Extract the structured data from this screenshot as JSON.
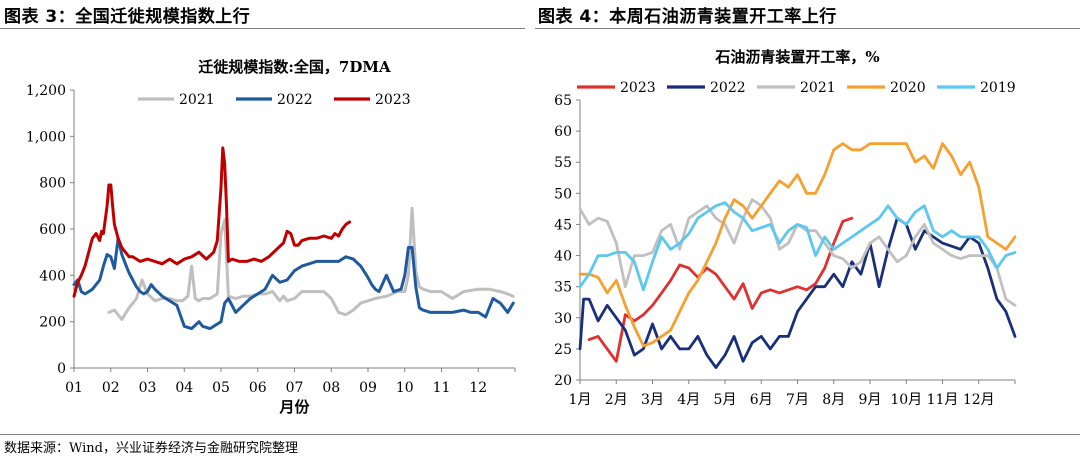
{
  "left": {
    "figure_title": "图表 3：全国迁徙规模指数上行"
  },
  "right": {
    "figure_title": "图表 4：本周石油沥青装置开工率上行"
  },
  "source": "数据来源：Wind，兴业证券经济与金融研究院整理",
  "chart_data": [
    {
      "type": "line",
      "title": "迁徙规模指数:全国，7DMA",
      "xlabel": "月份",
      "ylabel": "",
      "ylim": [
        0,
        1200
      ],
      "xlim": [
        1,
        13
      ],
      "yticks": [
        "0",
        "200",
        "400",
        "600",
        "800",
        "1,000",
        "1,200"
      ],
      "xticks": [
        "01",
        "02",
        "03",
        "04",
        "05",
        "06",
        "07",
        "08",
        "09",
        "10",
        "11",
        "12"
      ],
      "grid": false,
      "legend_position": "top",
      "colors": {
        "2021": "#bfbfbf",
        "2022": "#1f5a9e",
        "2023": "#c00000"
      },
      "series": [
        {
          "name": "2021",
          "x": [
            1.95,
            2.1,
            2.3,
            2.5,
            2.7,
            2.85,
            3.0,
            3.2,
            3.4,
            3.6,
            3.8,
            3.95,
            4.1,
            4.2,
            4.3,
            4.4,
            4.5,
            4.7,
            4.9,
            5.0,
            5.1,
            5.2,
            5.4,
            5.6,
            5.8,
            6.0,
            6.2,
            6.4,
            6.6,
            6.7,
            6.8,
            7.0,
            7.2,
            7.5,
            7.8,
            8.0,
            8.2,
            8.4,
            8.6,
            8.8,
            9.0,
            9.2,
            9.5,
            9.8,
            10.0,
            10.1,
            10.2,
            10.3,
            10.4,
            10.5,
            10.7,
            11.0,
            11.3,
            11.6,
            12.0,
            12.3,
            12.6,
            12.8,
            12.95
          ],
          "values": [
            240,
            250,
            210,
            260,
            300,
            380,
            320,
            290,
            300,
            300,
            290,
            290,
            310,
            440,
            300,
            290,
            300,
            300,
            320,
            580,
            640,
            310,
            300,
            310,
            310,
            320,
            320,
            330,
            290,
            310,
            290,
            300,
            330,
            330,
            330,
            300,
            240,
            230,
            250,
            280,
            290,
            300,
            310,
            330,
            330,
            400,
            690,
            420,
            350,
            340,
            330,
            330,
            300,
            330,
            340,
            340,
            330,
            320,
            310
          ]
        },
        {
          "name": "2022",
          "x": [
            1.0,
            1.1,
            1.2,
            1.3,
            1.4,
            1.5,
            1.6,
            1.7,
            1.8,
            1.9,
            2.0,
            2.1,
            2.2,
            2.3,
            2.4,
            2.5,
            2.6,
            2.7,
            2.8,
            2.9,
            3.0,
            3.1,
            3.2,
            3.4,
            3.6,
            3.8,
            4.0,
            4.2,
            4.4,
            4.5,
            4.7,
            4.9,
            5.0,
            5.1,
            5.2,
            5.4,
            5.6,
            5.8,
            6.0,
            6.2,
            6.4,
            6.6,
            6.8,
            7.0,
            7.2,
            7.4,
            7.6,
            7.8,
            8.0,
            8.2,
            8.4,
            8.6,
            8.8,
            9.0,
            9.1,
            9.2,
            9.3,
            9.5,
            9.7,
            9.9,
            10.0,
            10.1,
            10.2,
            10.3,
            10.4,
            10.5,
            10.7,
            11.0,
            11.3,
            11.6,
            11.8,
            12.0,
            12.2,
            12.4,
            12.6,
            12.8,
            12.95
          ],
          "values": [
            360,
            380,
            330,
            320,
            330,
            340,
            360,
            380,
            440,
            490,
            480,
            430,
            560,
            490,
            450,
            410,
            380,
            350,
            330,
            320,
            330,
            360,
            340,
            310,
            290,
            270,
            180,
            170,
            200,
            180,
            170,
            190,
            200,
            280,
            300,
            240,
            270,
            300,
            320,
            340,
            400,
            370,
            380,
            420,
            440,
            450,
            460,
            460,
            460,
            460,
            480,
            470,
            440,
            390,
            360,
            340,
            330,
            400,
            330,
            340,
            400,
            520,
            520,
            350,
            260,
            250,
            240,
            240,
            240,
            250,
            240,
            240,
            220,
            300,
            280,
            240,
            280
          ]
        },
        {
          "name": "2023",
          "x": [
            1.0,
            1.1,
            1.2,
            1.3,
            1.4,
            1.5,
            1.6,
            1.7,
            1.75,
            1.8,
            1.9,
            1.95,
            2.0,
            2.05,
            2.1,
            2.2,
            2.3,
            2.4,
            2.5,
            2.6,
            2.7,
            2.8,
            3.0,
            3.2,
            3.4,
            3.6,
            3.8,
            4.0,
            4.2,
            4.4,
            4.6,
            4.8,
            4.9,
            5.0,
            5.05,
            5.1,
            5.15,
            5.2,
            5.3,
            5.5,
            5.7,
            5.9,
            6.1,
            6.3,
            6.5,
            6.7,
            6.8,
            6.9,
            7.0,
            7.1,
            7.2,
            7.4,
            7.6,
            7.8,
            8.0,
            8.1,
            8.2,
            8.3,
            8.4,
            8.5
          ],
          "values": [
            310,
            370,
            400,
            440,
            500,
            560,
            580,
            550,
            590,
            580,
            700,
            790,
            790,
            700,
            620,
            560,
            520,
            500,
            480,
            480,
            470,
            460,
            470,
            460,
            450,
            470,
            450,
            470,
            480,
            500,
            470,
            500,
            550,
            780,
            950,
            880,
            700,
            460,
            470,
            460,
            460,
            470,
            460,
            480,
            510,
            540,
            590,
            580,
            530,
            530,
            550,
            560,
            560,
            570,
            560,
            580,
            570,
            600,
            620,
            630
          ]
        }
      ]
    },
    {
      "type": "line",
      "title": "石油沥青装置开工率，%",
      "xlabel": "",
      "ylabel": "",
      "ylim": [
        20,
        65
      ],
      "xlim": [
        1,
        13
      ],
      "yticks": [
        "20",
        "25",
        "30",
        "35",
        "40",
        "45",
        "50",
        "55",
        "60",
        "65"
      ],
      "xticks": [
        "1月",
        "2月",
        "3月",
        "4月",
        "5月",
        "6月",
        "7月",
        "8月",
        "9月",
        "10月",
        "11月",
        "12月"
      ],
      "grid": false,
      "legend_position": "top",
      "colors": {
        "2023": "#e03030",
        "2022": "#1a2f7a",
        "2021": "#c0c0c0",
        "2020": "#f5a030",
        "2019": "#5bc8f0"
      },
      "series": [
        {
          "name": "2023",
          "x": [
            1.25,
            1.5,
            1.75,
            2.0,
            2.25,
            2.5,
            2.75,
            3.0,
            3.25,
            3.5,
            3.75,
            4.0,
            4.25,
            4.5,
            4.75,
            5.0,
            5.25,
            5.5,
            5.75,
            6.0,
            6.25,
            6.5,
            6.75,
            7.0,
            7.25,
            7.5,
            7.75,
            8.0,
            8.25,
            8.5
          ],
          "values": [
            26.5,
            27,
            25,
            23,
            30.5,
            29.5,
            30.5,
            32,
            34,
            36,
            38.5,
            38,
            36.5,
            38,
            37,
            35,
            33,
            35.5,
            31.5,
            34,
            34.5,
            34,
            34.5,
            35,
            34.5,
            35.5,
            38,
            42,
            45.5,
            46
          ]
        },
        {
          "name": "2022",
          "x": [
            1.0,
            1.1,
            1.25,
            1.5,
            1.75,
            2.0,
            2.25,
            2.5,
            2.75,
            3.0,
            3.25,
            3.5,
            3.75,
            4.0,
            4.25,
            4.5,
            4.75,
            5.0,
            5.25,
            5.5,
            5.75,
            6.0,
            6.25,
            6.5,
            6.75,
            7.0,
            7.25,
            7.5,
            7.75,
            8.0,
            8.25,
            8.5,
            8.75,
            9.0,
            9.25,
            9.5,
            9.75,
            10.0,
            10.25,
            10.5,
            10.75,
            11.0,
            11.25,
            11.5,
            11.75,
            12.0,
            12.25,
            12.5,
            12.75,
            13.0
          ],
          "values": [
            25,
            33,
            33,
            29.5,
            32,
            30,
            28,
            24,
            25,
            29,
            25,
            27,
            25,
            25,
            27,
            24,
            22,
            24,
            27,
            23,
            26,
            27,
            25,
            27,
            27,
            31,
            33,
            35,
            35,
            37,
            35,
            39,
            37,
            42,
            35,
            41,
            46,
            45,
            41,
            44,
            43,
            42,
            41.5,
            41,
            43,
            42,
            38,
            33,
            31,
            27
          ]
        },
        {
          "name": "2021",
          "x": [
            1.0,
            1.25,
            1.5,
            1.75,
            2.0,
            2.25,
            2.5,
            2.75,
            3.0,
            3.25,
            3.5,
            3.75,
            4.0,
            4.25,
            4.5,
            4.75,
            5.0,
            5.25,
            5.5,
            5.75,
            6.0,
            6.25,
            6.5,
            6.75,
            7.0,
            7.25,
            7.5,
            7.75,
            8.0,
            8.25,
            8.5,
            8.75,
            9.0,
            9.25,
            9.5,
            9.75,
            10.0,
            10.25,
            10.5,
            10.75,
            11.0,
            11.25,
            11.5,
            11.75,
            12.0,
            12.25,
            12.5,
            12.75,
            13.0
          ],
          "values": [
            47.5,
            45,
            46,
            45.5,
            42,
            35,
            40,
            40,
            40.5,
            44,
            45,
            41,
            46,
            47,
            48,
            46,
            45,
            42,
            46,
            49,
            48,
            46,
            41,
            42,
            45,
            44,
            44,
            42,
            40,
            39.5,
            38,
            39,
            42,
            43,
            41,
            39,
            40,
            43,
            45,
            42,
            41,
            40,
            39.5,
            40,
            40,
            40,
            38,
            33,
            32
          ]
        },
        {
          "name": "2020",
          "x": [
            1.0,
            1.25,
            1.5,
            1.75,
            2.0,
            2.25,
            2.5,
            2.75,
            3.0,
            3.25,
            3.5,
            3.75,
            4.0,
            4.25,
            4.5,
            4.75,
            5.0,
            5.25,
            5.5,
            5.75,
            6.0,
            6.25,
            6.5,
            6.75,
            7.0,
            7.25,
            7.5,
            7.75,
            8.0,
            8.25,
            8.5,
            8.75,
            9.0,
            9.25,
            9.5,
            9.75,
            10.0,
            10.25,
            10.5,
            10.75,
            11.0,
            11.25,
            11.5,
            11.75,
            12.0,
            12.25,
            12.5,
            12.75,
            13.0
          ],
          "values": [
            37,
            37,
            36.5,
            34,
            36,
            32,
            28.5,
            25.5,
            26,
            27,
            28,
            31,
            34,
            36,
            39,
            42,
            46,
            49,
            48,
            46,
            48,
            50,
            52,
            51,
            53,
            50,
            50,
            53,
            57,
            58,
            57,
            57,
            58,
            58,
            58,
            58,
            58,
            55,
            56,
            54,
            58,
            56,
            53,
            55,
            51,
            43,
            42,
            41,
            43
          ]
        },
        {
          "name": "2019",
          "x": [
            1.0,
            1.25,
            1.5,
            1.75,
            2.0,
            2.25,
            2.5,
            2.75,
            3.0,
            3.25,
            3.5,
            3.75,
            4.0,
            4.25,
            4.5,
            4.75,
            5.0,
            5.25,
            5.5,
            5.75,
            6.0,
            6.25,
            6.5,
            6.75,
            7.0,
            7.25,
            7.5,
            7.75,
            8.0,
            8.25,
            8.5,
            8.75,
            9.0,
            9.25,
            9.5,
            9.75,
            10.0,
            10.25,
            10.5,
            10.75,
            11.0,
            11.25,
            11.5,
            11.75,
            12.0,
            12.25,
            12.5,
            12.75,
            13.0
          ],
          "values": [
            35,
            37,
            40,
            40,
            40.5,
            40.5,
            39,
            34.5,
            39,
            43,
            41,
            42,
            43.5,
            46,
            47,
            48,
            48.5,
            47,
            46,
            44,
            44.5,
            45,
            42,
            44,
            45,
            44.5,
            40,
            43,
            41,
            42,
            43,
            44,
            45,
            46,
            48,
            46,
            45,
            47,
            48,
            44,
            43,
            44,
            43,
            43,
            43,
            41,
            38,
            40,
            40.5
          ]
        }
      ]
    }
  ]
}
